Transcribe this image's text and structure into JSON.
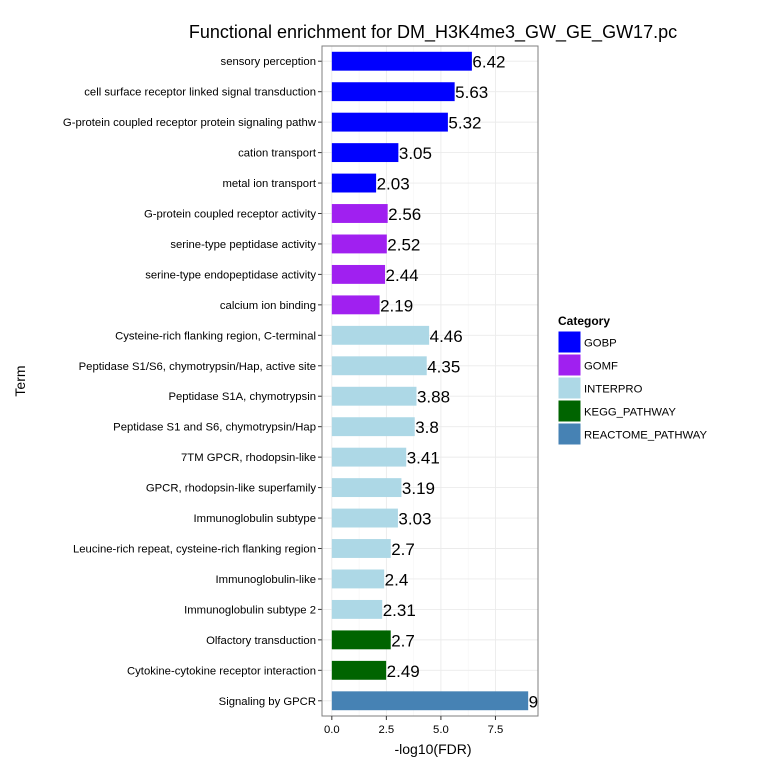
{
  "chart_data": {
    "type": "bar",
    "orientation": "horizontal",
    "title": "Functional enrichment for DM_H3K4me3_GW_GE_GW17.pc",
    "xlabel": "-log10(FDR)",
    "ylabel": "Term",
    "xlim": [
      -0.45,
      9.45
    ],
    "x_ticks": [
      "0.0",
      "2.5",
      "5.0",
      "7.5"
    ],
    "x_tick_values": [
      0,
      2.5,
      5,
      7.5
    ],
    "grid": true,
    "legend": {
      "title": "Category",
      "placement": "right",
      "entries": [
        {
          "name": "GOBP",
          "color": "#0000ff"
        },
        {
          "name": "GOMF",
          "color": "#a020f0"
        },
        {
          "name": "INTERPRO",
          "color": "#add8e6"
        },
        {
          "name": "KEGG_PATHWAY",
          "color": "#006400"
        },
        {
          "name": "REACTOME_PATHWAY",
          "color": "#4682b4"
        }
      ]
    },
    "bars": [
      {
        "term": "sensory perception",
        "value": 6.42,
        "label": "6.42",
        "category": "GOBP"
      },
      {
        "term": "cell surface receptor linked signal transduction",
        "value": 5.63,
        "label": "5.63",
        "category": "GOBP"
      },
      {
        "term": "G-protein coupled receptor protein signaling pathw",
        "value": 5.32,
        "label": "5.32",
        "category": "GOBP"
      },
      {
        "term": "cation transport",
        "value": 3.05,
        "label": "3.05",
        "category": "GOBP"
      },
      {
        "term": "metal ion transport",
        "value": 2.03,
        "label": "2.03",
        "category": "GOBP"
      },
      {
        "term": "G-protein coupled receptor activity",
        "value": 2.56,
        "label": "2.56",
        "category": "GOMF"
      },
      {
        "term": "serine-type peptidase activity",
        "value": 2.52,
        "label": "2.52",
        "category": "GOMF"
      },
      {
        "term": "serine-type endopeptidase activity",
        "value": 2.44,
        "label": "2.44",
        "category": "GOMF"
      },
      {
        "term": "calcium ion binding",
        "value": 2.19,
        "label": "2.19",
        "category": "GOMF"
      },
      {
        "term": "Cysteine-rich flanking region, C-terminal",
        "value": 4.46,
        "label": "4.46",
        "category": "INTERPRO"
      },
      {
        "term": "Peptidase S1/S6, chymotrypsin/Hap, active site",
        "value": 4.35,
        "label": "4.35",
        "category": "INTERPRO"
      },
      {
        "term": "Peptidase S1A, chymotrypsin",
        "value": 3.88,
        "label": "3.88",
        "category": "INTERPRO"
      },
      {
        "term": "Peptidase S1 and S6, chymotrypsin/Hap",
        "value": 3.8,
        "label": "3.8",
        "category": "INTERPRO"
      },
      {
        "term": "7TM GPCR, rhodopsin-like",
        "value": 3.41,
        "label": "3.41",
        "category": "INTERPRO"
      },
      {
        "term": "GPCR, rhodopsin-like superfamily",
        "value": 3.19,
        "label": "3.19",
        "category": "INTERPRO"
      },
      {
        "term": "Immunoglobulin subtype",
        "value": 3.03,
        "label": "3.03",
        "category": "INTERPRO"
      },
      {
        "term": "Leucine-rich repeat, cysteine-rich flanking region",
        "value": 2.7,
        "label": "2.7",
        "category": "INTERPRO"
      },
      {
        "term": "Immunoglobulin-like",
        "value": 2.4,
        "label": "2.4",
        "category": "INTERPRO"
      },
      {
        "term": "Immunoglobulin subtype 2",
        "value": 2.31,
        "label": "2.31",
        "category": "INTERPRO"
      },
      {
        "term": "Olfactory transduction",
        "value": 2.7,
        "label": "2.7",
        "category": "KEGG_PATHWAY"
      },
      {
        "term": "Cytokine-cytokine receptor interaction",
        "value": 2.49,
        "label": "2.49",
        "category": "KEGG_PATHWAY"
      },
      {
        "term": "Signaling by GPCR",
        "value": 9,
        "label": "9",
        "category": "REACTOME_PATHWAY"
      }
    ]
  }
}
